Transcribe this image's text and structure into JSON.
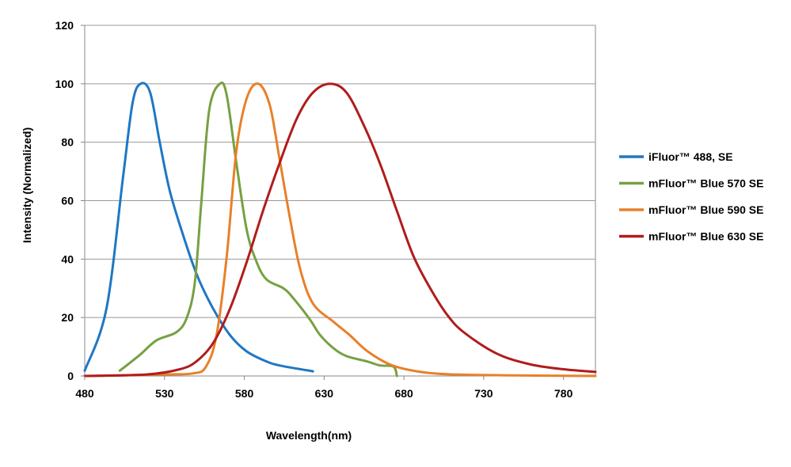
{
  "chart_data": {
    "type": "line",
    "title": "",
    "xlabel": "Wavelength(nm)",
    "ylabel": "Intensity (Normalized)",
    "xlim": [
      480,
      800
    ],
    "ylim": [
      0,
      120
    ],
    "xticks": [
      "480",
      "530",
      "580",
      "630",
      "680",
      "730",
      "780"
    ],
    "yticks": [
      "0",
      "20",
      "40",
      "60",
      "80",
      "100",
      "120"
    ],
    "grid": "horizontal",
    "legend_position": "right",
    "series": [
      {
        "name": "iFluor™ 488, SE",
        "color": "#1f77c4",
        "x": [
          480,
          493.6,
          504,
          510,
          515,
          521,
          527,
          533,
          540,
          550,
          560.5,
          571,
          581,
          592,
          602,
          623
        ],
        "y": [
          1.8,
          23,
          68,
          93.5,
          100,
          97,
          80,
          64,
          51,
          35,
          23,
          14,
          8.6,
          5.4,
          3.6,
          1.6
        ]
      },
      {
        "name": "mFluor™ Blue 570 SE",
        "color": "#77a043",
        "x": [
          502,
          514.5,
          525,
          537.5,
          544,
          549,
          553,
          558,
          564.7,
          569,
          575,
          581.5,
          587.7,
          594,
          604.5,
          610.7,
          621,
          627.5,
          635.9,
          644,
          656.8,
          665,
          673.5,
          675.6
        ],
        "y": [
          1.8,
          7.2,
          12.2,
          15,
          20,
          32,
          59,
          91,
          100,
          96,
          73,
          50,
          39,
          33,
          30,
          26.6,
          19.4,
          14,
          9.5,
          6.8,
          5,
          3.6,
          3.2,
          0
        ]
      },
      {
        "name": "mFluor™ Blue 590 SE",
        "color": "#e8802a",
        "x": [
          480,
          529,
          548,
          556,
          562.6,
          569,
          575,
          581.5,
          588.8,
          596,
          602,
          608.7,
          615,
          623,
          636,
          646,
          656.8,
          671,
          686,
          707,
          749,
          800
        ],
        "y": [
          0,
          0.5,
          0.9,
          3.2,
          14,
          41,
          77,
          95,
          100,
          92.6,
          74.5,
          53.7,
          36.6,
          24.8,
          18.5,
          14,
          8.6,
          4,
          1.8,
          0.6,
          0.2,
          0
        ]
      },
      {
        "name": "mFluor™ Blue 630 SE",
        "color": "#b01c1c",
        "x": [
          480,
          518.7,
          539.6,
          550,
          560.5,
          571,
          581.5,
          592,
          602,
          612.8,
          623,
          633.8,
          644,
          654.7,
          665,
          675.6,
          686,
          696.5,
          707,
          717.4,
          738,
          759,
          780,
          800
        ],
        "y": [
          0,
          0.5,
          2.3,
          5,
          11.3,
          23,
          39,
          57,
          72.7,
          88,
          97,
          100,
          97,
          86,
          72.7,
          56.5,
          41,
          30,
          21,
          15,
          7.7,
          4,
          2.3,
          1.4
        ]
      }
    ]
  }
}
